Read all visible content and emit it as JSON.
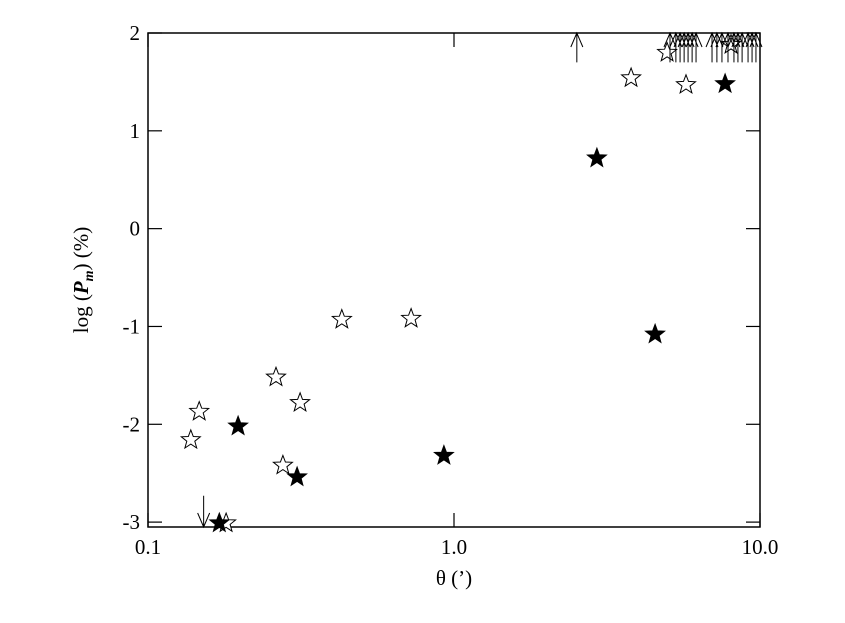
{
  "chart_data": {
    "type": "scatter",
    "xlabel": "θ (’)",
    "ylabel": [
      "log (",
      "P",
      "m",
      ") (%)"
    ],
    "xscale": "log",
    "xlim": [
      0.1,
      10.0
    ],
    "ylim": [
      -3.05,
      2
    ],
    "xticks": [
      0.1,
      {
        "value": 1.0,
        "label": "1.0"
      },
      {
        "value": 10.0,
        "label": "10.0"
      }
    ],
    "yticks": [
      -3,
      -2,
      -1,
      0,
      1,
      2
    ],
    "grid": false,
    "series": [
      {
        "marker": "open-star",
        "color": "#000000",
        "x": [
          0.138,
          0.147,
          0.262,
          0.314,
          0.276,
          0.43,
          0.724,
          3.79,
          5.73,
          4.97,
          8.04,
          0.18
        ],
        "values": [
          -2.16,
          -1.87,
          -1.52,
          -1.78,
          -2.42,
          -0.93,
          -0.92,
          1.54,
          1.47,
          1.8,
          1.88,
          -3.01
        ]
      },
      {
        "marker": "filled-star",
        "color": "#000000",
        "x": [
          0.197,
          0.171,
          0.307,
          0.927,
          2.93,
          4.54,
          7.69
        ],
        "values": [
          -2.02,
          -3.01,
          -2.54,
          -2.32,
          0.72,
          -1.08,
          1.48
        ]
      },
      {
        "marker": "arrow-up",
        "color": "#000000",
        "x": [
          2.52,
          5.08,
          5.31,
          5.48,
          5.65,
          5.82,
          6.0,
          6.18,
          6.97,
          7.23,
          7.51,
          7.86,
          8.22,
          8.47,
          8.74,
          9.14,
          9.42,
          9.7
        ],
        "values": [
          1.7,
          1.7,
          1.7,
          1.7,
          1.7,
          1.7,
          1.7,
          1.7,
          1.7,
          1.7,
          1.7,
          1.7,
          1.7,
          1.7,
          1.7,
          1.7,
          1.7,
          1.7
        ]
      },
      {
        "marker": "arrow-down",
        "color": "#000000",
        "x": [
          0.152
        ],
        "values": [
          -2.73
        ]
      }
    ]
  }
}
